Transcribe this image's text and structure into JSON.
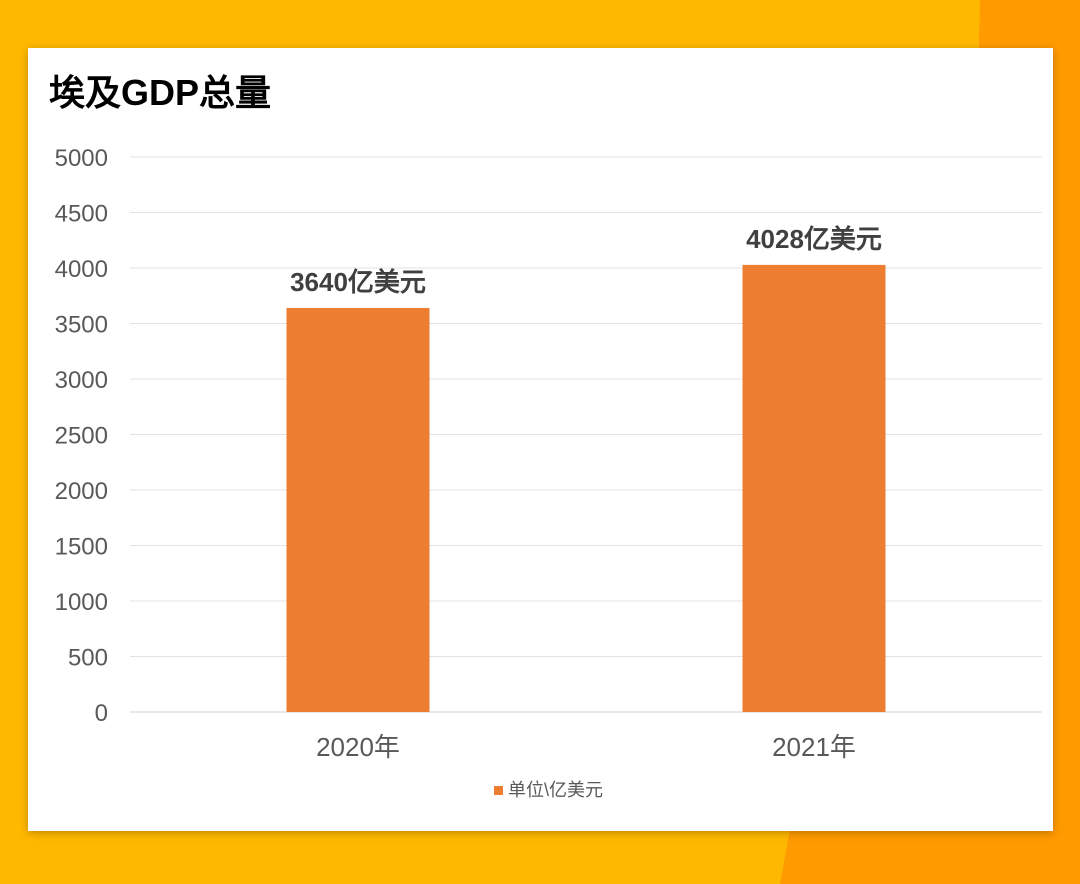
{
  "background": {
    "base_color": "#FFB800",
    "accent_color": "#FF9A00"
  },
  "chart_data": {
    "type": "bar",
    "title": "埃及GDP总量",
    "categories": [
      "2020年",
      "2021年"
    ],
    "series": [
      {
        "name": "单位\\亿美元",
        "values": [
          3640,
          4028
        ],
        "data_labels": [
          "3640亿美元",
          "4028亿美元"
        ],
        "color": "#ED7D31"
      }
    ],
    "xlabel": "",
    "ylabel": "",
    "ylim": [
      0,
      5000
    ],
    "yticks": [
      0,
      500,
      1000,
      1500,
      2000,
      2500,
      3000,
      3500,
      4000,
      4500,
      5000
    ],
    "grid": true,
    "legend_position": "bottom"
  }
}
